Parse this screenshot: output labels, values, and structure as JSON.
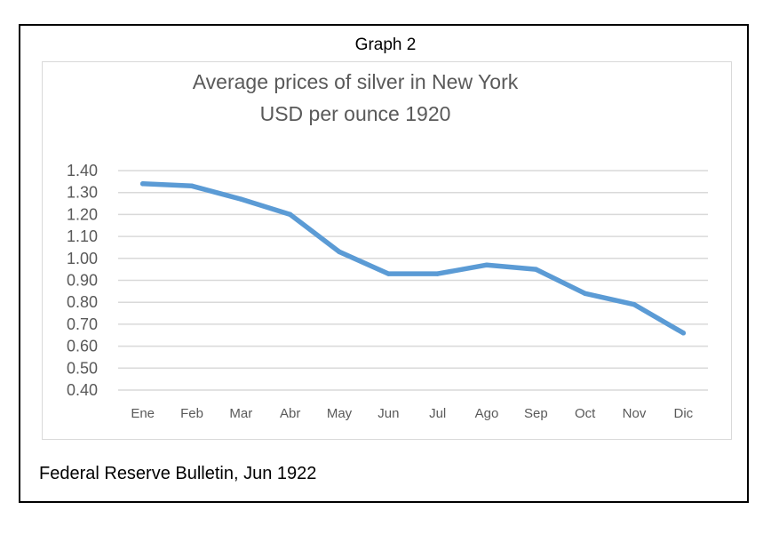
{
  "figure": {
    "label": "Graph 2",
    "source": "Federal Reserve Bulletin, Jun 1922"
  },
  "chart_data": {
    "type": "line",
    "title": "Average prices of silver in New York",
    "subtitle": "USD per ounce 1920",
    "categories": [
      "Ene",
      "Feb",
      "Mar",
      "Abr",
      "May",
      "Jun",
      "Jul",
      "Ago",
      "Sep",
      "Oct",
      "Nov",
      "Dic"
    ],
    "series": [
      {
        "values": [
          1.34,
          1.33,
          1.27,
          1.2,
          1.03,
          0.93,
          0.93,
          0.97,
          0.95,
          0.84,
          0.79,
          0.66
        ]
      }
    ],
    "yticks": [
      "1.40",
      "1.30",
      "1.20",
      "1.10",
      "1.00",
      "0.90",
      "0.80",
      "0.70",
      "0.60",
      "0.50",
      "0.40"
    ],
    "ylim": [
      0.4,
      1.4
    ],
    "grid": true,
    "line_color": "#5B9BD5",
    "grid_color": "#d9d9d9"
  }
}
